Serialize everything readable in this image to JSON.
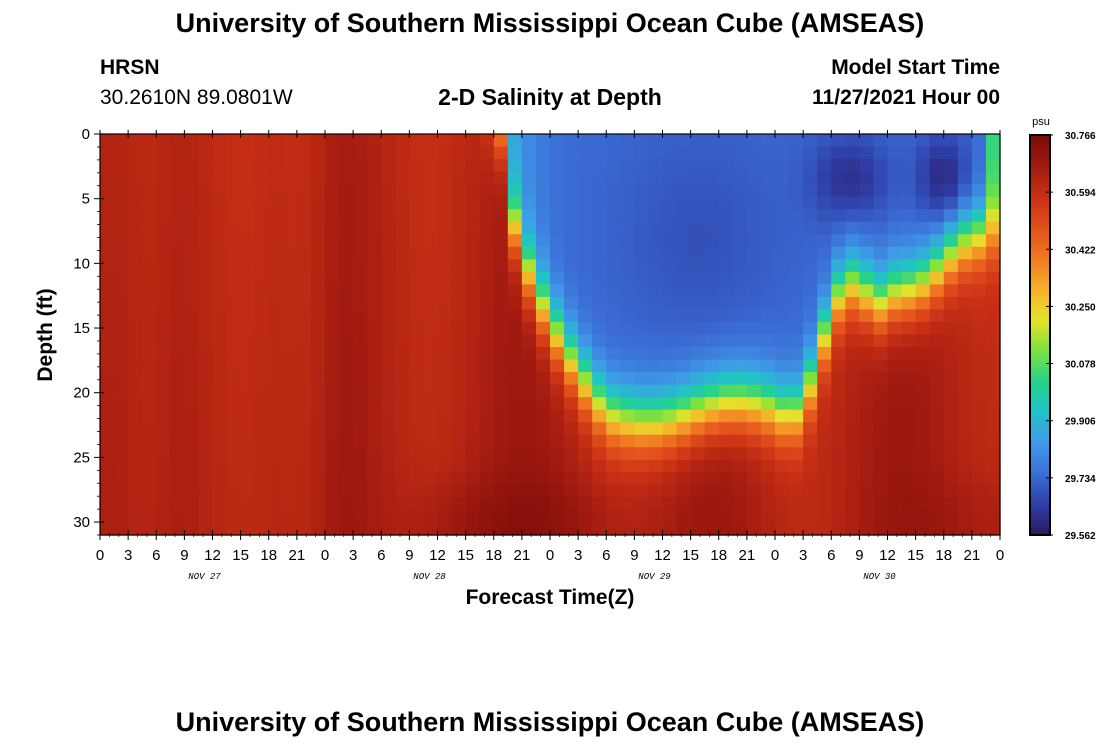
{
  "header": {
    "title": "University of Southern Mississippi Ocean Cube (AMSEAS)",
    "station": "HRSN",
    "coordinates": "30.2610N  89.0801W",
    "plot_title": "2-D Salinity at Depth",
    "start_label": "Model Start Time",
    "start_value": "11/27/2021 Hour 00"
  },
  "footer": {
    "title": "University of Southern Mississippi Ocean Cube (AMSEAS)"
  },
  "chart_data": {
    "type": "heatmap",
    "title": "2-D Salinity at Depth",
    "xlabel": "Forecast Time(Z)",
    "ylabel": "Depth (ft)",
    "x_ticks": [
      "0",
      "3",
      "6",
      "9",
      "12",
      "15",
      "18",
      "21",
      "0",
      "3",
      "6",
      "9",
      "12",
      "15",
      "18",
      "21",
      "0",
      "3",
      "6",
      "9",
      "12",
      "15",
      "18",
      "21",
      "0",
      "3",
      "6",
      "9",
      "12",
      "15",
      "18",
      "21",
      "0"
    ],
    "day_labels": [
      "NOV 27",
      "NOV 28",
      "NOV 29",
      "NOV 30"
    ],
    "x_range_hours": [
      0,
      96
    ],
    "y_ticks": [
      0,
      5,
      10,
      15,
      20,
      25,
      30
    ],
    "ylim": [
      0,
      31
    ],
    "colorbar": {
      "unit": "psu",
      "min": 29.562,
      "max": 30.766,
      "tick_labels": [
        "30.766",
        "30.594",
        "30.422",
        "30.250",
        "30.078",
        "29.906",
        "29.734",
        "29.562"
      ],
      "colors": [
        "#2a1b5e",
        "#2f3ea8",
        "#3b6fd6",
        "#3f9ae8",
        "#22c2c8",
        "#26d38a",
        "#7de23c",
        "#e5e22c",
        "#f5b12a",
        "#f07a22",
        "#e2501c",
        "#c83015",
        "#a11a10",
        "#780b08"
      ]
    },
    "grid": "on",
    "description_values": {
      "salinity_high_region": "most of the plot shows ~30.5-30.7 psu (orange/red); from Nov 28 ~18Z through Nov 30 the upper layer (0 to ~20 ft) freshens to ~29.6-29.8 psu (blue), deepest freshening ~22 ft around Nov 29 12Z"
    }
  }
}
